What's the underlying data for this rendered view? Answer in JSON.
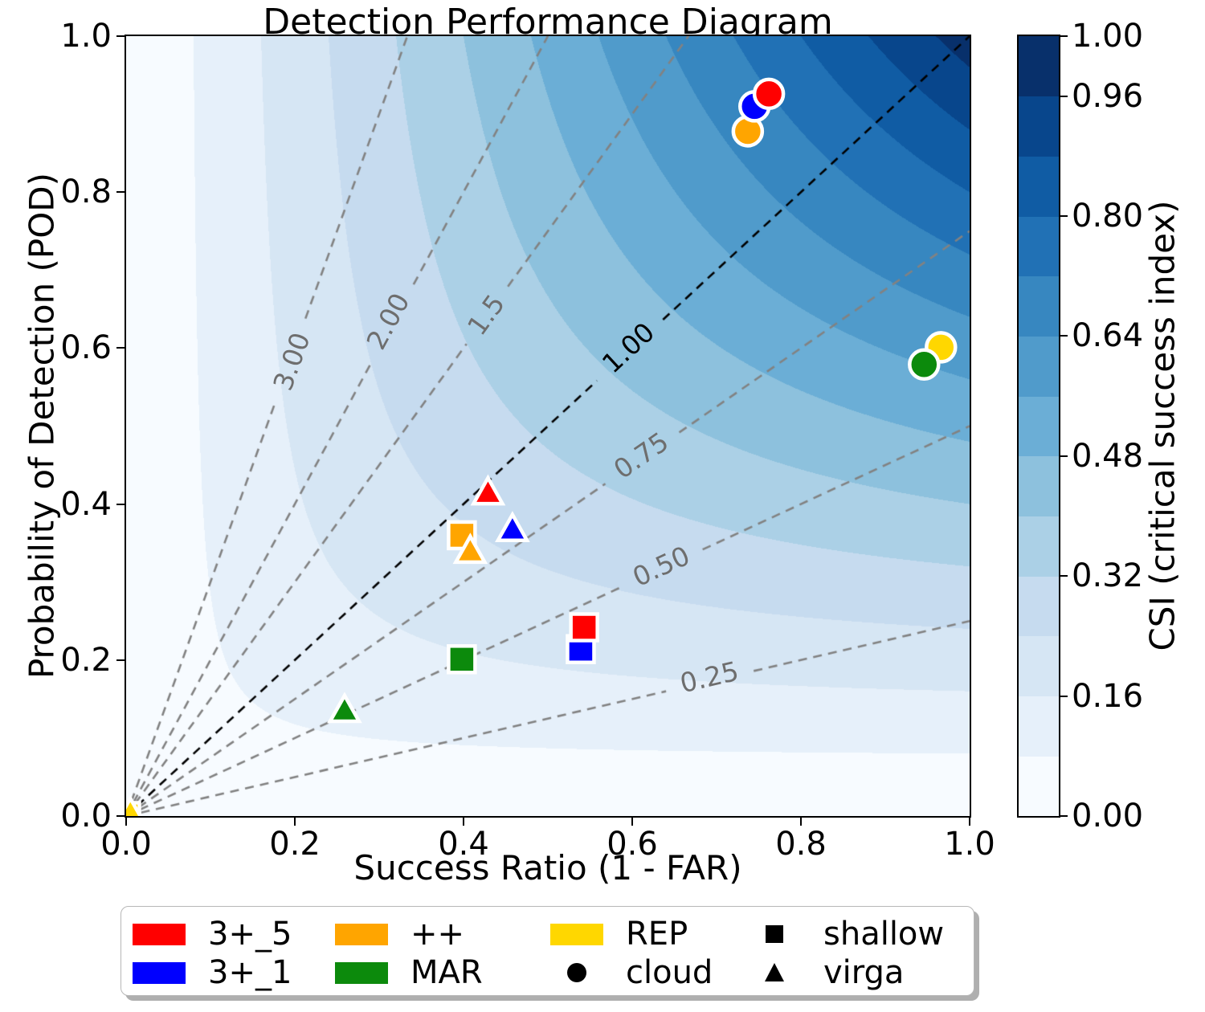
{
  "chart_data": {
    "type": "scatter",
    "variant": "performance-diagram-with-csi-contours",
    "title": "Detection Performance Diagram",
    "xlabel": "Success Ratio (1 - FAR)",
    "ylabel": "Probability of Detection (POD)",
    "xlim": [
      0.0,
      1.0
    ],
    "ylim": [
      0.0,
      1.0
    ],
    "xticks": [
      "0.0",
      "0.2",
      "0.4",
      "0.6",
      "0.8",
      "1.0"
    ],
    "yticks": [
      "0.0",
      "0.2",
      "0.4",
      "0.6",
      "0.8",
      "1.0"
    ],
    "grid": false,
    "background": {
      "quantity": "CSI",
      "formula": "csi = 1 / (1/sr + 1/pod - 1)",
      "cmap": "Blues",
      "levels": [
        0.0,
        0.08,
        0.16,
        0.24,
        0.32,
        0.4,
        0.48,
        0.56,
        0.64,
        0.72,
        0.8,
        0.88,
        0.96,
        1.0
      ],
      "cmap_anchors_rgb": [
        [
          0.9686,
          0.9843,
          1.0
        ],
        [
          0.8706,
          0.9216,
          0.9686
        ],
        [
          0.7765,
          0.8588,
          0.9373
        ],
        [
          0.6196,
          0.7922,
          0.8824
        ],
        [
          0.4196,
          0.6824,
          0.8392
        ],
        [
          0.2588,
          0.5725,
          0.7765
        ],
        [
          0.1294,
          0.4431,
          0.7098
        ],
        [
          0.0314,
          0.3176,
          0.6118
        ],
        [
          0.0314,
          0.1882,
          0.4196
        ]
      ]
    },
    "colorbar": {
      "label": "CSI (critical success index)",
      "tick_labels": [
        "0.00",
        "0.16",
        "0.32",
        "0.48",
        "0.64",
        "0.80",
        "0.96",
        "1.00"
      ],
      "tick_level_indices": [
        0,
        2,
        4,
        6,
        8,
        10,
        12,
        13
      ]
    },
    "bias_lines": {
      "line_color": "#828282",
      "reference_color": "#000000",
      "lines": [
        {
          "value": 3.0,
          "label": "3.00",
          "label_at": [
            0.196,
            0.583
          ],
          "color": "gray"
        },
        {
          "value": 2.0,
          "label": "2.00",
          "label_at": [
            0.31,
            0.634
          ],
          "color": "gray"
        },
        {
          "value": 1.5,
          "label": "1.5",
          "label_at": [
            0.427,
            0.643
          ],
          "color": "gray"
        },
        {
          "value": 1.0,
          "label": "1.00",
          "label_at": [
            0.595,
            0.6
          ],
          "color": "black"
        },
        {
          "value": 0.75,
          "label": "0.75",
          "label_at": [
            0.61,
            0.462
          ],
          "color": "gray"
        },
        {
          "value": 0.5,
          "label": "0.50",
          "label_at": [
            0.634,
            0.32
          ],
          "color": "gray"
        },
        {
          "value": 0.25,
          "label": "0.25",
          "label_at": [
            0.691,
            0.178
          ],
          "color": "gray"
        }
      ]
    },
    "marker_shapes": {
      "cloud": "circle",
      "shallow": "square",
      "virga": "triangle"
    },
    "series": [
      {
        "name": "3+_5",
        "color": "#ff0000",
        "points": {
          "cloud": [
            0.762,
            0.926
          ],
          "shallow": [
            0.543,
            0.242
          ],
          "virga": [
            0.429,
            0.416
          ]
        }
      },
      {
        "name": "3+_1",
        "color": "#0000ff",
        "points": {
          "cloud": [
            0.745,
            0.91
          ],
          "shallow": [
            0.539,
            0.214
          ],
          "virga": [
            0.458,
            0.369
          ]
        }
      },
      {
        "name": "++",
        "color": "#ffa500",
        "points": {
          "cloud": [
            0.737,
            0.878
          ],
          "shallow": [
            0.398,
            0.36
          ],
          "virga": [
            0.408,
            0.341
          ]
        }
      },
      {
        "name": "MAR",
        "color": "#0c8a0c",
        "points": {
          "cloud": [
            0.946,
            0.579
          ],
          "shallow": [
            0.398,
            0.201
          ],
          "virga": [
            0.259,
            0.137
          ]
        }
      },
      {
        "name": "REP",
        "color": "#ffd700",
        "points": {
          "cloud": [
            0.966,
            0.601
          ],
          "shallow": [
            0.0,
            0.0
          ],
          "virga": [
            0.005,
            0.005
          ]
        }
      }
    ],
    "legend": {
      "columns": [
        [
          {
            "kind": "patch",
            "color": "#ff0000",
            "label": "3+_5"
          },
          {
            "kind": "patch",
            "color": "#0000ff",
            "label": "3+_1"
          }
        ],
        [
          {
            "kind": "patch",
            "color": "#ffa500",
            "label": "++"
          },
          {
            "kind": "patch",
            "color": "#0c8a0c",
            "label": "MAR"
          }
        ],
        [
          {
            "kind": "patch",
            "color": "#ffd700",
            "label": "REP"
          },
          {
            "kind": "marker",
            "marker": "circle",
            "color": "#000000",
            "label": "cloud"
          }
        ],
        [
          {
            "kind": "marker",
            "marker": "square",
            "color": "#000000",
            "label": "shallow"
          },
          {
            "kind": "marker",
            "marker": "triangle",
            "color": "#000000",
            "label": "virga"
          }
        ]
      ]
    }
  }
}
